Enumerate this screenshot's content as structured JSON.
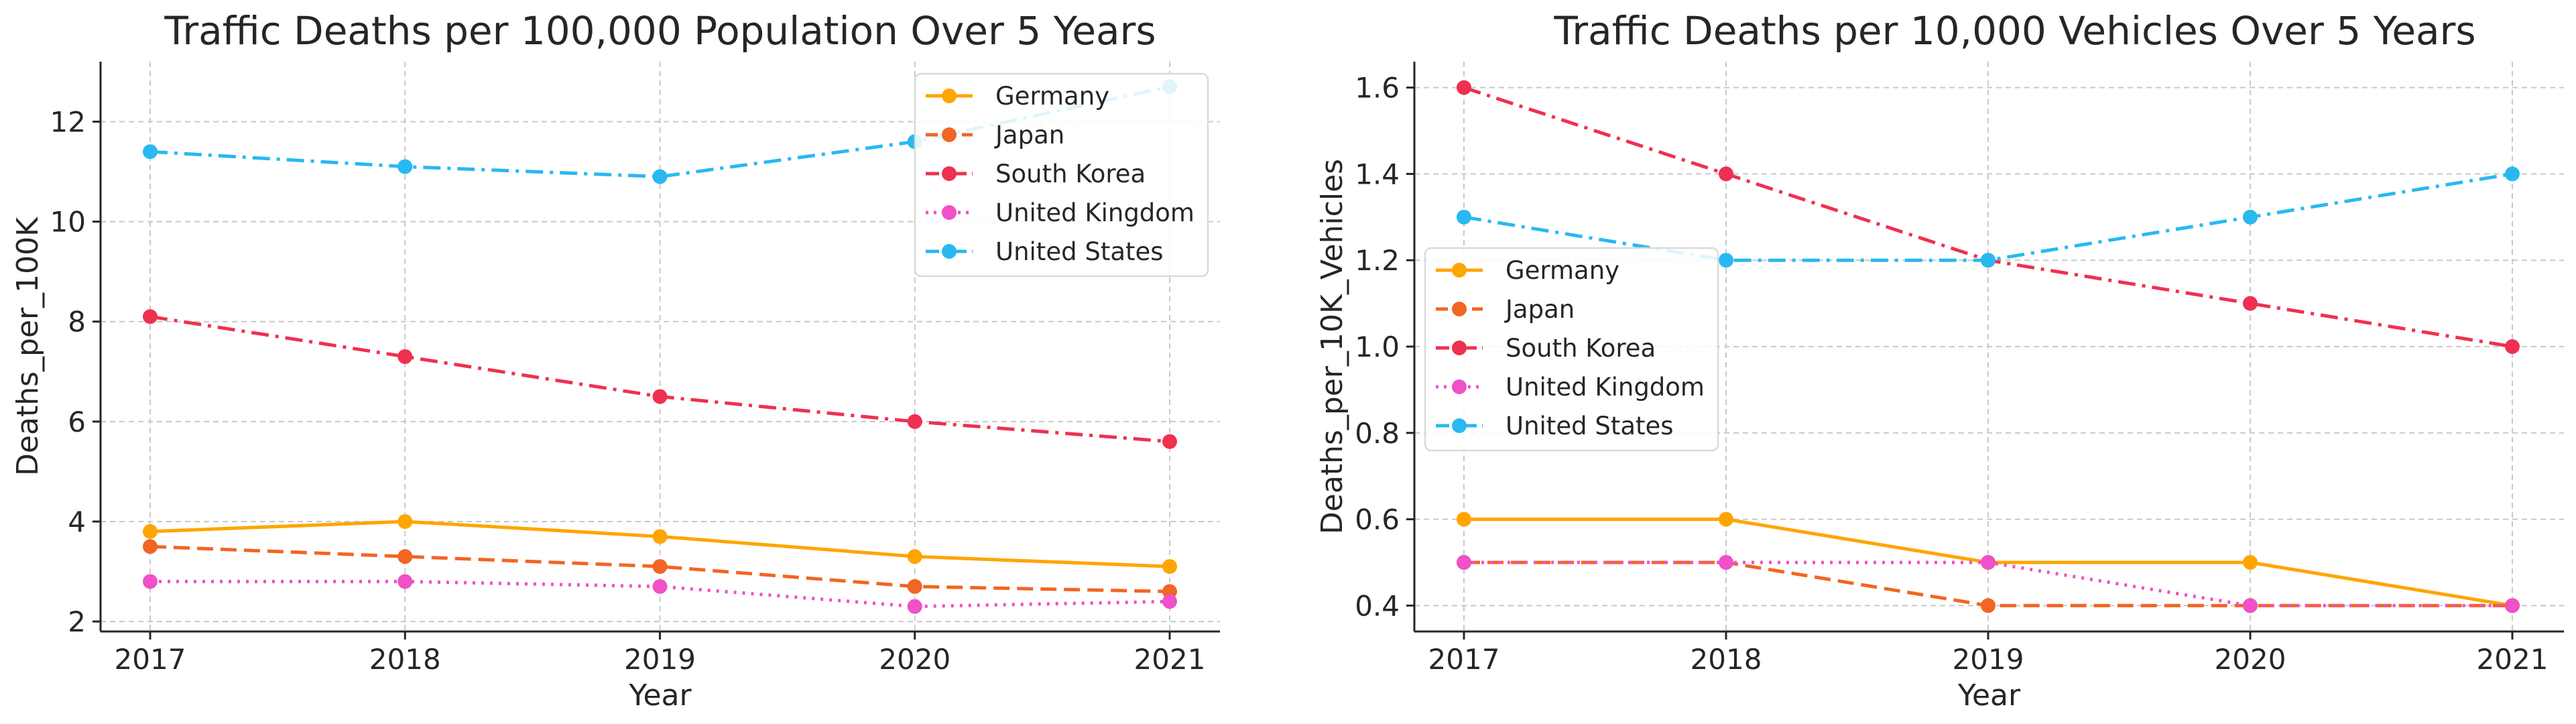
{
  "chart_data": [
    {
      "type": "line",
      "title": "Traffic Deaths per 100,000 Population Over 5 Years",
      "xlabel": "Year",
      "ylabel": "Deaths_per_100K",
      "categories": [
        "2017",
        "2018",
        "2019",
        "2020",
        "2021"
      ],
      "ylim": [
        1.8,
        13.2
      ],
      "yticks": [
        2,
        4,
        6,
        8,
        10,
        12
      ],
      "grid": true,
      "legend_position": "top-right",
      "series": [
        {
          "name": "Germany",
          "values": [
            3.8,
            4.0,
            3.7,
            3.3,
            3.1
          ],
          "color": "#FFA500",
          "style": "solid"
        },
        {
          "name": "Japan",
          "values": [
            3.5,
            3.3,
            3.1,
            2.7,
            2.6
          ],
          "color": "#F26522",
          "style": "dashed"
        },
        {
          "name": "South Korea",
          "values": [
            8.1,
            7.3,
            6.5,
            6.0,
            5.6
          ],
          "color": "#F03050",
          "style": "dashdot"
        },
        {
          "name": "United Kingdom",
          "values": [
            2.8,
            2.8,
            2.7,
            2.3,
            2.4
          ],
          "color": "#F050C8",
          "style": "dotted"
        },
        {
          "name": "United States",
          "values": [
            11.4,
            11.1,
            10.9,
            11.6,
            12.7
          ],
          "color": "#28B9F0",
          "style": "dashdot"
        }
      ]
    },
    {
      "type": "line",
      "title": "Traffic Deaths per 10,000 Vehicles Over 5 Years",
      "xlabel": "Year",
      "ylabel": "Deaths_per_10K_Vehicles",
      "categories": [
        "2017",
        "2018",
        "2019",
        "2020",
        "2021"
      ],
      "ylim": [
        0.34,
        1.66
      ],
      "yticks": [
        0.4,
        0.6,
        0.8,
        1.0,
        1.2,
        1.4,
        1.6
      ],
      "grid": true,
      "legend_position": "center-left",
      "series": [
        {
          "name": "Germany",
          "values": [
            0.6,
            0.6,
            0.5,
            0.5,
            0.4
          ],
          "color": "#FFA500",
          "style": "solid"
        },
        {
          "name": "Japan",
          "values": [
            0.5,
            0.5,
            0.4,
            0.4,
            0.4
          ],
          "color": "#F26522",
          "style": "dashed"
        },
        {
          "name": "South Korea",
          "values": [
            1.6,
            1.4,
            1.2,
            1.1,
            1.0
          ],
          "color": "#F03050",
          "style": "dashdot"
        },
        {
          "name": "United Kingdom",
          "values": [
            0.5,
            0.5,
            0.5,
            0.4,
            0.4
          ],
          "color": "#F050C8",
          "style": "dotted"
        },
        {
          "name": "United States",
          "values": [
            1.3,
            1.2,
            1.2,
            1.3,
            1.4
          ],
          "color": "#28B9F0",
          "style": "dashdot"
        }
      ]
    }
  ]
}
